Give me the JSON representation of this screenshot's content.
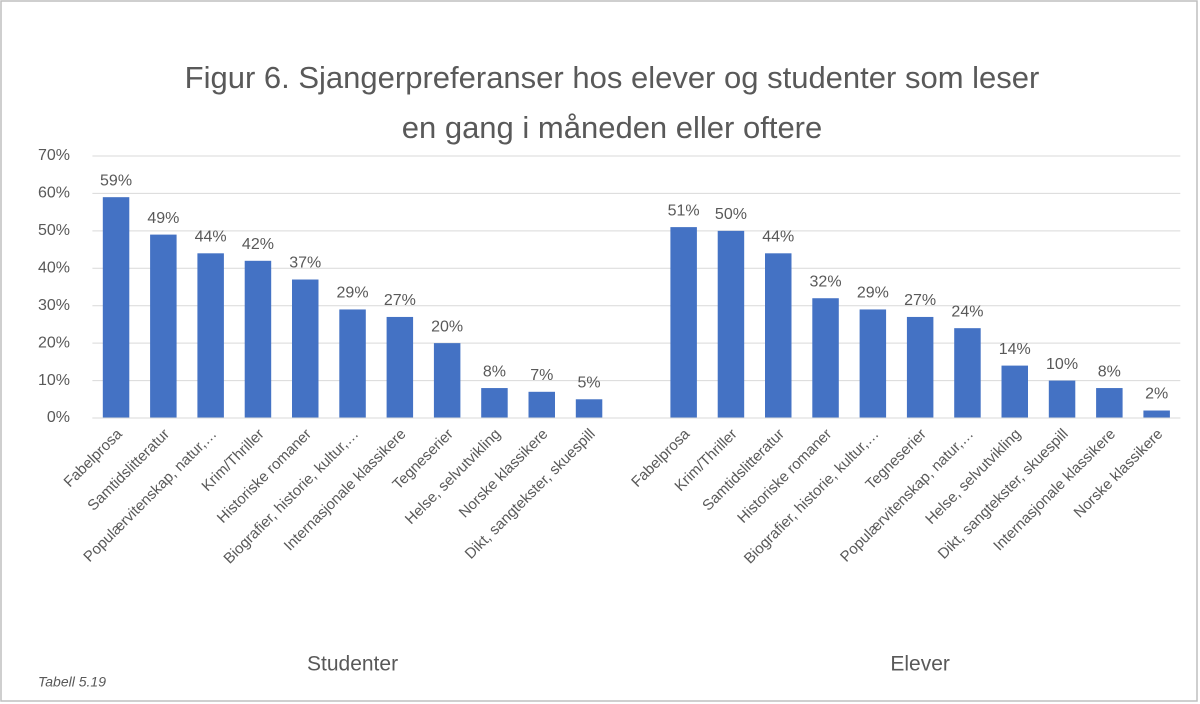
{
  "chart_data": {
    "type": "bar",
    "title": [
      "Figur 6.  Sjangerpreferanser hos elever og studenter som leser",
      "en gang i måneden eller oftere"
    ],
    "note": "Tabell 5.19",
    "color": "#4472c4",
    "groups": [
      {
        "name": "Studenter",
        "categories": [
          "Fabelprosa",
          "Samtidslitteratur",
          "Populærvitenskap, natur,…",
          "Krim/Thriller",
          "Historiske romaner",
          "Biografier, historie, kultur,…",
          "Internasjonale klassikere",
          "Tegneserier",
          "Helse, selvutvikling",
          "Norske klassikere",
          "Dikt, sangtekster, skuespill"
        ],
        "values": [
          59,
          49,
          44,
          42,
          37,
          29,
          27,
          20,
          8,
          7,
          5
        ],
        "value_labels": [
          "59%",
          "49%",
          "44%",
          "42%",
          "37%",
          "29%",
          "27%",
          "20%",
          "8%",
          "7%",
          "5%"
        ]
      },
      {
        "name": "Elever",
        "categories": [
          "Fabelprosa",
          "Krim/Thriller",
          "Samtidslitteratur",
          "Historiske romaner",
          "Biografier, historie, kultur,…",
          "Tegneserier",
          "Populærvitenskap, natur,…",
          "Helse, selvutvikling",
          "Dikt, sangtekster, skuespill",
          "Internasjonale klassikere",
          "Norske klassikere"
        ],
        "values": [
          51,
          50,
          44,
          32,
          29,
          27,
          24,
          14,
          10,
          8,
          2
        ],
        "value_labels": [
          "51%",
          "50%",
          "44%",
          "32%",
          "29%",
          "27%",
          "24%",
          "14%",
          "10%",
          "8%",
          "2%"
        ]
      }
    ],
    "ylim": [
      0,
      70
    ],
    "yticks": [
      {
        "value": 0,
        "label": "0%"
      },
      {
        "value": 10,
        "label": "10%"
      },
      {
        "value": 20,
        "label": "20%"
      },
      {
        "value": 30,
        "label": "30%"
      },
      {
        "value": 40,
        "label": "40%"
      },
      {
        "value": 50,
        "label": "50%"
      },
      {
        "value": 60,
        "label": "60%"
      },
      {
        "value": 70,
        "label": "70%"
      }
    ],
    "grid": true
  }
}
